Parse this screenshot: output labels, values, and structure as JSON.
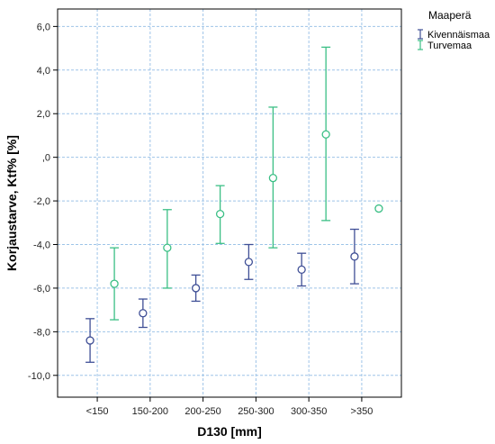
{
  "chart_data": {
    "type": "errorbar",
    "xlabel": "D130 [mm]",
    "ylabel": "Korjaustarve, Ktf% [%]",
    "ylim": [
      -11,
      6.8
    ],
    "y_ticks": [
      6,
      4,
      2,
      0,
      -2,
      -4,
      -6,
      -8,
      -10
    ],
    "y_tick_labels": [
      "6,0",
      "4,0",
      "2,0",
      ",0",
      "-2,0",
      "-4,0",
      "-6,0",
      "-8,0",
      "-10,0"
    ],
    "categories": [
      "<150",
      "150-200",
      "200-250",
      "250-300",
      "300-350",
      ">350"
    ],
    "grid": true,
    "legend_title": "Maaperä",
    "legend_position": "top-right",
    "series": [
      {
        "name": "Kivennäismaa",
        "color": "#3f4f96",
        "mean": [
          -8.4,
          -7.15,
          -6.0,
          -4.8,
          -5.15,
          -4.55
        ],
        "lower": [
          -9.4,
          -7.8,
          -6.6,
          -5.6,
          -5.9,
          -5.8
        ],
        "upper": [
          -7.4,
          -6.5,
          -5.4,
          -4.0,
          -4.4,
          -3.3
        ]
      },
      {
        "name": "Turvemaa",
        "color": "#3bbf85",
        "mean": [
          -5.8,
          -4.15,
          -2.6,
          -0.95,
          1.05,
          -2.35
        ],
        "lower": [
          -7.45,
          -6.0,
          -3.95,
          -4.15,
          -2.9,
          null
        ],
        "upper": [
          -4.15,
          -2.4,
          -1.3,
          2.3,
          5.05,
          null
        ]
      }
    ]
  }
}
